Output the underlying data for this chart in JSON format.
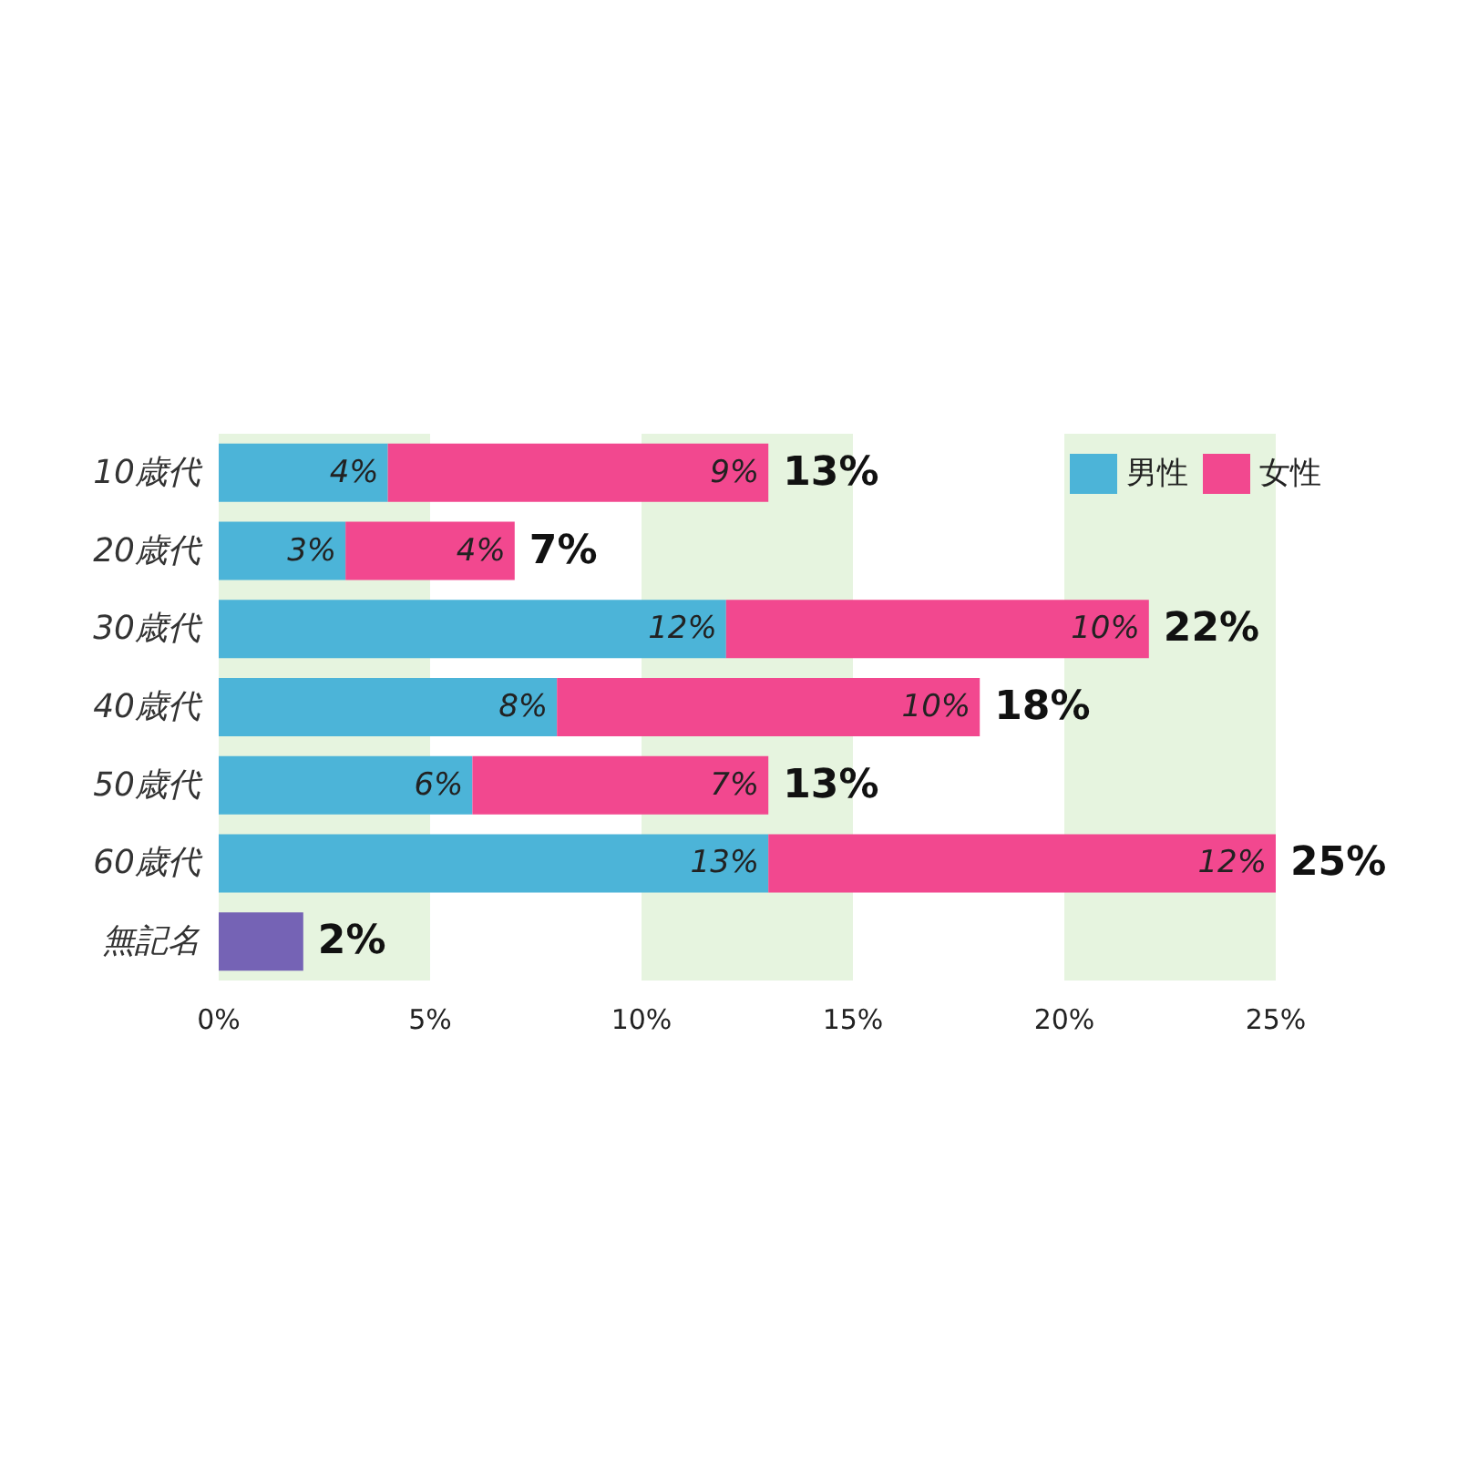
{
  "chart_data": {
    "type": "bar",
    "orientation": "horizontal",
    "stacked": true,
    "categories": [
      "10歳代",
      "20歳代",
      "30歳代",
      "40歳代",
      "50歳代",
      "60歳代",
      "無記名"
    ],
    "series": [
      {
        "name": "男性",
        "color": "#4cb4d8",
        "values": [
          4,
          3,
          12,
          8,
          6,
          13,
          null
        ],
        "value_labels": [
          "4%",
          "3%",
          "12%",
          "8%",
          "6%",
          "13%",
          null
        ]
      },
      {
        "name": "女性",
        "color": "#f2488f",
        "values": [
          9,
          4,
          10,
          10,
          7,
          12,
          null
        ],
        "value_labels": [
          "9%",
          "4%",
          "10%",
          "10%",
          "7%",
          "12%",
          null
        ]
      },
      {
        "color": "#7563b5",
        "values": [
          null,
          null,
          null,
          null,
          null,
          null,
          2
        ]
      }
    ],
    "totals": [
      "13%",
      "7%",
      "22%",
      "18%",
      "13%",
      "25%",
      "2%"
    ],
    "xlim": [
      0,
      25
    ],
    "xticks": [
      {
        "value": 0,
        "label": "0%"
      },
      {
        "value": 5,
        "label": "5%"
      },
      {
        "value": 10,
        "label": "10%"
      },
      {
        "value": 15,
        "label": "15%"
      },
      {
        "value": 20,
        "label": "20%"
      },
      {
        "value": 25,
        "label": "25%"
      }
    ],
    "bands": [
      {
        "axis": "x",
        "from": 0,
        "to": 5,
        "color": "#e6f4df"
      },
      {
        "axis": "x",
        "from": 10,
        "to": 15,
        "color": "#e6f4df"
      },
      {
        "axis": "x",
        "from": 20,
        "to": 25,
        "color": "#e6f4df"
      }
    ],
    "grid": false,
    "legend": "top right"
  }
}
